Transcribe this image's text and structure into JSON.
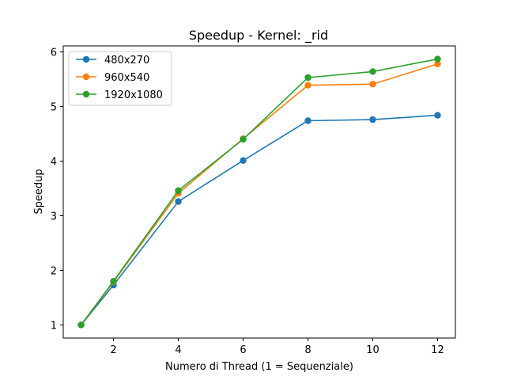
{
  "chart_data": {
    "type": "line",
    "title": "Speedup - Kernel: _rid",
    "xlabel": "Numero di Thread (1 = Sequenziale)",
    "ylabel": "Speedup",
    "x": [
      1,
      2,
      4,
      6,
      8,
      10,
      12
    ],
    "xticks": [
      2,
      4,
      6,
      8,
      10,
      12
    ],
    "yticks": [
      1,
      2,
      3,
      4,
      5,
      6
    ],
    "xlim": [
      0.45,
      12.55
    ],
    "ylim": [
      0.76,
      6.11
    ],
    "legend_position": "upper-left",
    "grid": false,
    "series": [
      {
        "name": "480x270",
        "color": "#1f77b4",
        "values": [
          1.0,
          1.73,
          3.26,
          4.01,
          4.74,
          4.76,
          4.84
        ]
      },
      {
        "name": "960x540",
        "color": "#ff7f0e",
        "values": [
          1.0,
          1.79,
          3.41,
          4.41,
          5.39,
          5.41,
          5.78
        ]
      },
      {
        "name": "1920x1080",
        "color": "#2ca02c",
        "values": [
          1.0,
          1.8,
          3.46,
          4.4,
          5.53,
          5.64,
          5.87
        ]
      }
    ]
  }
}
